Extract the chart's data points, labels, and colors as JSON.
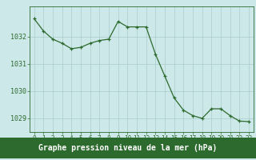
{
  "x": [
    0,
    1,
    2,
    3,
    4,
    5,
    6,
    7,
    8,
    9,
    10,
    11,
    12,
    13,
    14,
    15,
    16,
    17,
    18,
    19,
    20,
    21,
    22,
    23
  ],
  "y": [
    1032.65,
    1032.2,
    1031.9,
    1031.75,
    1031.55,
    1031.6,
    1031.75,
    1031.85,
    1031.9,
    1032.55,
    1032.35,
    1032.35,
    1032.35,
    1031.35,
    1030.55,
    1029.75,
    1029.3,
    1029.1,
    1029.0,
    1029.35,
    1029.35,
    1029.1,
    1028.9,
    1028.88
  ],
  "line_color": "#2d6a2d",
  "marker_color": "#2d6a2d",
  "bg_color": "#cce8e8",
  "grid_color": "#aacccc",
  "xlabel": "Graphe pression niveau de la mer (hPa)",
  "xlabel_bg": "#2d6a2d",
  "xlabel_fg": "#ffffff",
  "ylim": [
    1028.5,
    1033.1
  ],
  "yticks": [
    1029,
    1030,
    1031,
    1032
  ],
  "xticks": [
    0,
    1,
    2,
    3,
    4,
    5,
    6,
    7,
    8,
    9,
    10,
    11,
    12,
    13,
    14,
    15,
    16,
    17,
    18,
    19,
    20,
    21,
    22,
    23
  ],
  "tick_fontsize": 5.5,
  "xlabel_fontsize": 7.0,
  "ytick_fontsize": 6.0
}
